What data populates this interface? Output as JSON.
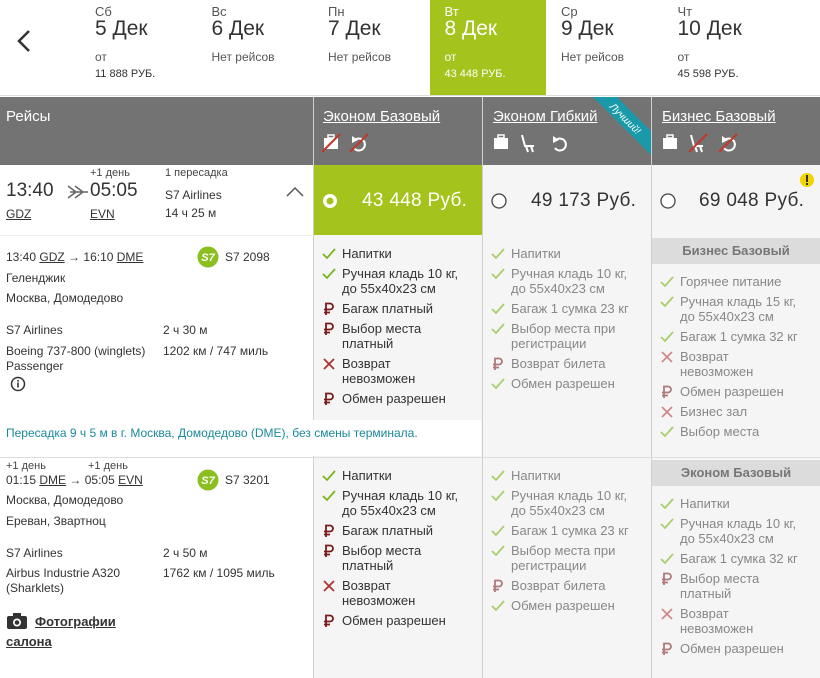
{
  "header": {
    "dates": [
      {
        "weekday": "Сб",
        "date": "5 Дек",
        "from": "от",
        "price": "11 888 РУБ."
      },
      {
        "weekday": "Вс",
        "date": "6 Дек",
        "from": "Нет рейсов"
      },
      {
        "weekday": "Пн",
        "date": "7 Дек",
        "from": "Нет рейсов"
      },
      {
        "weekday": "Вт",
        "date": "8 Дек",
        "from": "от",
        "price": "43 448 РУБ."
      },
      {
        "weekday": "Ср",
        "date": "9 Дек",
        "from": "Нет рейсов"
      },
      {
        "weekday": "Чт",
        "date": "10 Дек",
        "from": "от",
        "price": "45 598 РУБ."
      }
    ]
  },
  "table": {
    "heading": "Рейсы",
    "fares": [
      {
        "name": "Эконом Базовый"
      },
      {
        "name": "Эконом Гибкий",
        "badge": "Лучший!"
      },
      {
        "name": "Бизнес Базовый"
      }
    ],
    "summary": {
      "dep_time": "13:40",
      "dep_code": "GDZ",
      "next_day": "+1 день",
      "arr_time": "05:05",
      "arr_code": "EVN",
      "stops": "1 пересадка",
      "airline": "S7 Airlines",
      "duration": "14 ч 25 м",
      "prices": [
        "43 448 Руб.",
        "49 173 Руб.",
        "69 048 Руб."
      ]
    },
    "segments": [
      {
        "dep_time": "13:40",
        "dep_code": "GDZ",
        "arr_time": "16:10",
        "arr_code": "DME",
        "logo": "S7",
        "flight": "S7 2098",
        "from_city": "Геленджик",
        "to_city": "Москва, Домодедово",
        "airline": "S7 Airlines",
        "duration": "2 ч 30 м",
        "aircraft": "Boeing 737-800 (winglets) Passenger",
        "distance": "1202 км / 747 миль",
        "fares": [
          {
            "features": [
              {
                "icon": "check",
                "text": "Напитки"
              },
              {
                "icon": "check",
                "text": "Ручная кладь 10 кг, до 55х40х23 см"
              },
              {
                "icon": "paid",
                "text": "Багаж платный"
              },
              {
                "icon": "paid",
                "text": "Выбор места платный"
              },
              {
                "icon": "no",
                "text": "Возврат невозможен"
              },
              {
                "icon": "paid",
                "text": "Обмен разрешен"
              }
            ]
          },
          {
            "features": [
              {
                "icon": "check",
                "text": "Напитки"
              },
              {
                "icon": "check",
                "text": "Ручная кладь 10 кг, до 55х40х23 см"
              },
              {
                "icon": "check",
                "text": "Багаж 1 сумка 23 кг"
              },
              {
                "icon": "check",
                "text": "Выбор места при регистрации"
              },
              {
                "icon": "paid",
                "text": "Возврат билета"
              },
              {
                "icon": "check",
                "text": "Обмен разрешен"
              }
            ]
          },
          {
            "label": "Бизнес Базовый",
            "features": [
              {
                "icon": "check",
                "text": "Горячее питание"
              },
              {
                "icon": "check",
                "text": "Ручная кладь 15 кг, до 55х40х23 см"
              },
              {
                "icon": "check",
                "text": "Багаж 1 сумка 32 кг"
              },
              {
                "icon": "no",
                "text": "Возврат невозможен"
              },
              {
                "icon": "paid",
                "text": "Обмен разрешен"
              },
              {
                "icon": "no",
                "text": "Бизнес зал"
              },
              {
                "icon": "check",
                "text": "Выбор места"
              }
            ]
          }
        ]
      },
      {
        "dep_next_day": "+1 день",
        "dep_time": "01:15",
        "dep_code": "DME",
        "arr_next_day": "+1 день",
        "arr_time": "05:05",
        "arr_code": "EVN",
        "logo": "S7",
        "flight": "S7 3201",
        "from_city": "Москва, Домодедово",
        "to_city": "Ереван, Звартноц",
        "airline": "S7 Airlines",
        "duration": "2 ч 50 м",
        "aircraft": "Airbus Industrie A320 (Sharklets)",
        "distance": "1762 км / 1095 миль",
        "photos": "Фотографии салона",
        "fares": [
          {
            "features": [
              {
                "icon": "check",
                "text": "Напитки"
              },
              {
                "icon": "check",
                "text": "Ручная кладь 10 кг, до 55х40х23 см"
              },
              {
                "icon": "paid",
                "text": "Багаж платный"
              },
              {
                "icon": "paid",
                "text": "Выбор места платный"
              },
              {
                "icon": "no",
                "text": "Возврат невозможен"
              },
              {
                "icon": "paid",
                "text": "Обмен разрешен"
              }
            ]
          },
          {
            "features": [
              {
                "icon": "check",
                "text": "Напитки"
              },
              {
                "icon": "check",
                "text": "Ручная кладь 10 кг, до 55х40х23 см"
              },
              {
                "icon": "check",
                "text": "Багаж 1 сумка 23 кг"
              },
              {
                "icon": "check",
                "text": "Выбор места при регистрации"
              },
              {
                "icon": "paid",
                "text": "Возврат билета"
              },
              {
                "icon": "check",
                "text": "Обмен разрешен"
              }
            ]
          },
          {
            "label": "Эконом Базовый",
            "features": [
              {
                "icon": "check",
                "text": "Напитки"
              },
              {
                "icon": "check",
                "text": "Ручная кладь 10 кг, до 55х40х23 см"
              },
              {
                "icon": "check",
                "text": "Багаж 1 сумка 32 кг"
              },
              {
                "icon": "paid",
                "text": "Выбор места платный"
              },
              {
                "icon": "no",
                "text": "Возврат невозможен"
              },
              {
                "icon": "paid",
                "text": "Обмен разрешен"
              }
            ]
          }
        ]
      }
    ],
    "transfer": "Пересадка 9 ч 5 м в г. Москва, Домодедово (DME), без смены терминала."
  }
}
